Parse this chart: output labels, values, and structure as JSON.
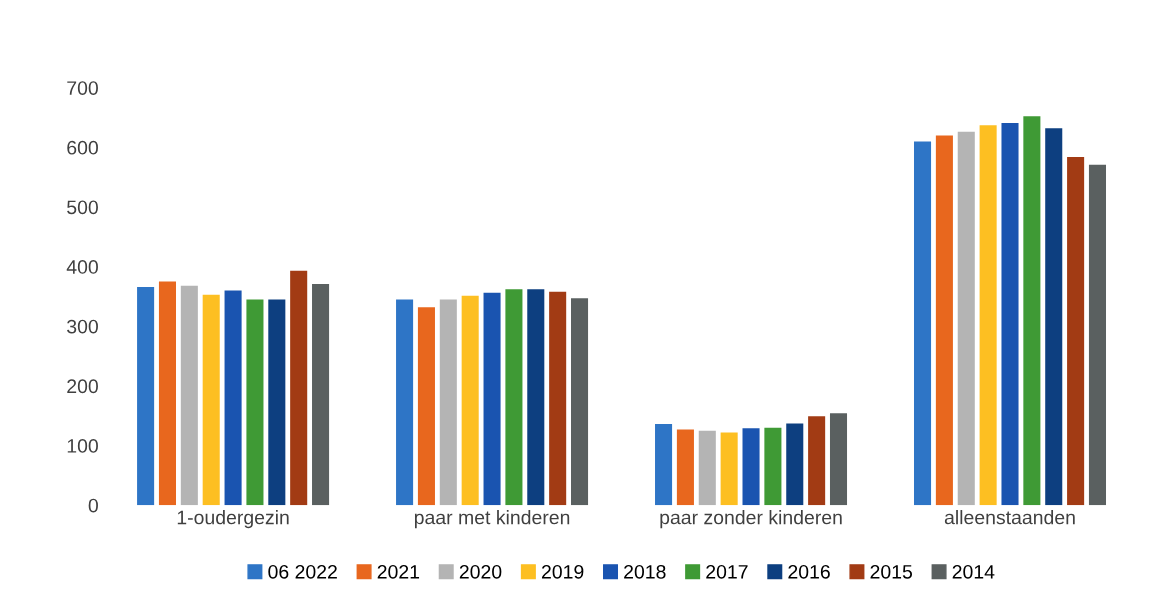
{
  "chart_data": {
    "type": "bar",
    "categories": [
      "1-oudergezin",
      "paar met kinderen",
      "paar zonder kinderen",
      "alleenstaanden"
    ],
    "series": [
      {
        "name": "06 2022",
        "color": "#2e75c6",
        "values": [
          366,
          345,
          136,
          610
        ]
      },
      {
        "name": "2021",
        "color": "#e8671e",
        "values": [
          375,
          332,
          127,
          620
        ]
      },
      {
        "name": "2020",
        "color": "#b4b4b4",
        "values": [
          368,
          345,
          125,
          626
        ]
      },
      {
        "name": "2019",
        "color": "#fdbf22",
        "values": [
          353,
          351,
          122,
          637
        ]
      },
      {
        "name": "2018",
        "color": "#1a54b0",
        "values": [
          360,
          356,
          129,
          641
        ]
      },
      {
        "name": "2017",
        "color": "#3f9a35",
        "values": [
          345,
          362,
          130,
          652
        ]
      },
      {
        "name": "2016",
        "color": "#0d3f80",
        "values": [
          345,
          362,
          137,
          632
        ]
      },
      {
        "name": "2015",
        "color": "#a23b14",
        "values": [
          393,
          358,
          149,
          584
        ]
      },
      {
        "name": "2014",
        "color": "#5a6060",
        "values": [
          371,
          347,
          154,
          571
        ]
      }
    ],
    "ylim": [
      0,
      700
    ],
    "yticks": [
      0,
      100,
      200,
      300,
      400,
      500,
      600,
      700
    ],
    "grid": false,
    "legend": "bottom"
  }
}
